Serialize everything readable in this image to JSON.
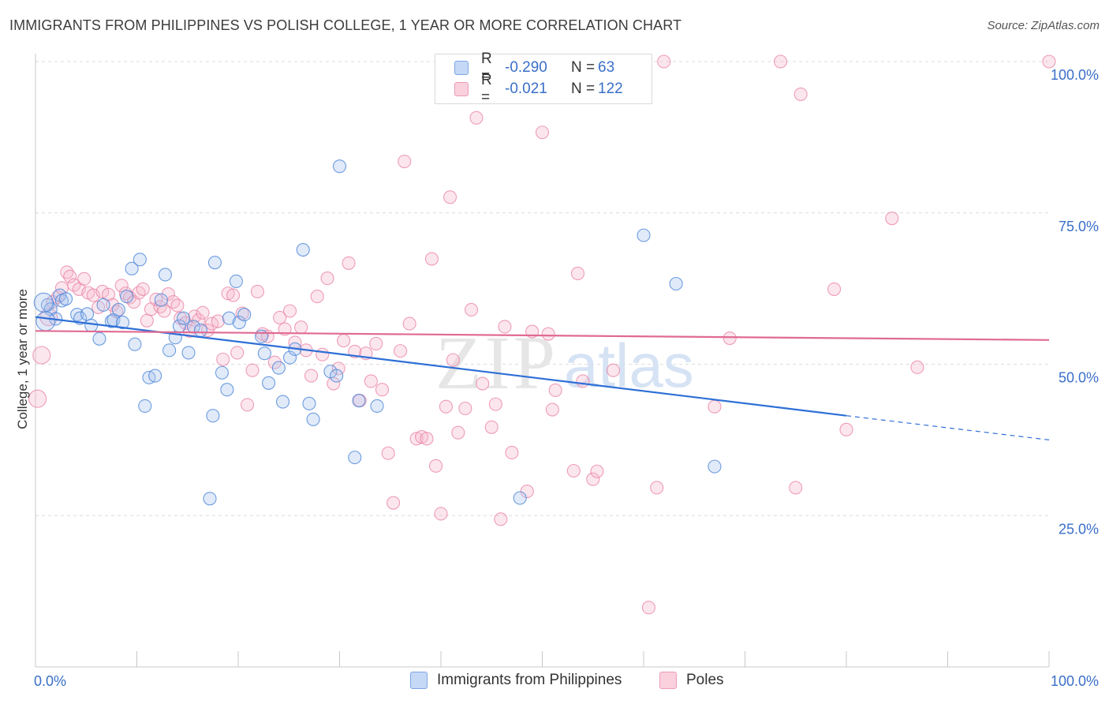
{
  "title": "IMMIGRANTS FROM PHILIPPINES VS POLISH COLLEGE, 1 YEAR OR MORE CORRELATION CHART",
  "source": "Source: ZipAtlas.com",
  "watermark": {
    "zip": "ZIP",
    "atlas": "atlas"
  },
  "legend": {
    "r_label": "R =",
    "n_label": "N =",
    "rows": [
      {
        "swatch_color": "#aec8f0",
        "r": "-0.290",
        "n": "63"
      },
      {
        "swatch_color": "#f5b8cc",
        "r": "-0.021",
        "n": "122"
      }
    ]
  },
  "colors": {
    "blue": "#4a86d8",
    "blue_fill": "rgba(168,196,238,0.35)",
    "blue_line": "#2e6fd6",
    "pink": "#e87fa3",
    "pink_fill": "rgba(245,184,204,0.35)",
    "pink_line": "#e06b92",
    "tick_text": "#3a6fc9"
  },
  "chart_data": {
    "type": "scatter",
    "title": "IMMIGRANTS FROM PHILIPPINES VS POLISH COLLEGE, 1 YEAR OR MORE CORRELATION CHART",
    "xlabel": "",
    "ylabel": "College, 1 year or more",
    "xlim": [
      0,
      100
    ],
    "ylim": [
      0,
      100
    ],
    "x_tick_labels": [
      "0.0%",
      "100.0%"
    ],
    "y_tick_labels": [
      "25.0%",
      "50.0%",
      "75.0%",
      "100.0%"
    ],
    "y_ticks": [
      25,
      50,
      75,
      100
    ],
    "grid": true,
    "legend_position": "bottom",
    "series": [
      {
        "name": "Immigrants from Philippines",
        "trend": {
          "x0": 0,
          "y0": 57.8,
          "x1": 80,
          "y1": 41.5,
          "dash_to_x": 100,
          "dash_to_y": 37.5
        },
        "points": [
          [
            1.2,
            59.8
          ],
          [
            1.5,
            59.1
          ],
          [
            2.0,
            57.5
          ],
          [
            2.4,
            61.4
          ],
          [
            2.6,
            60.5
          ],
          [
            3.0,
            60.8
          ],
          [
            4.1,
            58.2
          ],
          [
            4.4,
            57.6
          ],
          [
            5.1,
            58.3
          ],
          [
            5.5,
            56.4
          ],
          [
            6.3,
            54.2
          ],
          [
            6.7,
            59.8
          ],
          [
            7.5,
            57.1
          ],
          [
            7.7,
            57.3
          ],
          [
            8.2,
            59.0
          ],
          [
            8.6,
            56.9
          ],
          [
            9.0,
            61.2
          ],
          [
            9.5,
            65.8
          ],
          [
            9.8,
            53.3
          ],
          [
            10.3,
            67.3
          ],
          [
            10.8,
            43.1
          ],
          [
            11.2,
            47.8
          ],
          [
            11.8,
            48.1
          ],
          [
            12.4,
            60.6
          ],
          [
            12.8,
            64.8
          ],
          [
            13.2,
            52.3
          ],
          [
            13.8,
            54.4
          ],
          [
            14.2,
            56.3
          ],
          [
            14.6,
            57.6
          ],
          [
            15.1,
            51.9
          ],
          [
            15.6,
            56.2
          ],
          [
            16.3,
            55.6
          ],
          [
            17.2,
            27.8
          ],
          [
            17.5,
            41.5
          ],
          [
            17.7,
            66.8
          ],
          [
            18.4,
            48.6
          ],
          [
            18.9,
            45.8
          ],
          [
            19.1,
            57.6
          ],
          [
            19.8,
            63.7
          ],
          [
            20.1,
            56.9
          ],
          [
            20.6,
            58.2
          ],
          [
            22.3,
            54.6
          ],
          [
            22.6,
            51.8
          ],
          [
            23.0,
            46.9
          ],
          [
            24.0,
            49.4
          ],
          [
            24.4,
            43.8
          ],
          [
            25.1,
            51.1
          ],
          [
            25.6,
            52.5
          ],
          [
            26.4,
            68.9
          ],
          [
            27.0,
            43.5
          ],
          [
            27.4,
            40.9
          ],
          [
            29.1,
            48.8
          ],
          [
            29.7,
            48.1
          ],
          [
            30.0,
            82.7
          ],
          [
            31.5,
            34.6
          ],
          [
            31.9,
            44.0
          ],
          [
            33.7,
            43.1
          ],
          [
            47.8,
            27.9
          ],
          [
            60.0,
            71.3
          ],
          [
            63.2,
            63.3
          ],
          [
            67.0,
            33.1
          ],
          [
            0.8,
            60.2
          ],
          [
            1.0,
            57.1
          ]
        ]
      },
      {
        "name": "Poles",
        "trend": {
          "x0": 0,
          "y0": 55.5,
          "x1": 100,
          "y1": 54.0
        },
        "points": [
          [
            0.2,
            44.3
          ],
          [
            0.6,
            51.5
          ],
          [
            1.3,
            57.8
          ],
          [
            1.7,
            60.3
          ],
          [
            2.2,
            61.1
          ],
          [
            2.6,
            62.6
          ],
          [
            3.1,
            65.2
          ],
          [
            3.4,
            64.5
          ],
          [
            3.8,
            63.1
          ],
          [
            4.3,
            62.4
          ],
          [
            4.8,
            64.1
          ],
          [
            5.2,
            61.8
          ],
          [
            5.7,
            61.4
          ],
          [
            6.2,
            59.4
          ],
          [
            6.6,
            62.0
          ],
          [
            7.2,
            61.5
          ],
          [
            7.6,
            59.8
          ],
          [
            8.0,
            58.7
          ],
          [
            8.5,
            63.0
          ],
          [
            8.9,
            61.7
          ],
          [
            9.3,
            61.0
          ],
          [
            9.7,
            60.3
          ],
          [
            10.2,
            61.8
          ],
          [
            10.6,
            62.4
          ],
          [
            11.0,
            57.2
          ],
          [
            11.4,
            59.1
          ],
          [
            11.9,
            60.7
          ],
          [
            12.3,
            59.5
          ],
          [
            12.7,
            58.8
          ],
          [
            13.1,
            61.6
          ],
          [
            13.6,
            60.3
          ],
          [
            14.0,
            59.7
          ],
          [
            14.3,
            57.6
          ],
          [
            14.8,
            56.8
          ],
          [
            15.2,
            55.5
          ],
          [
            15.7,
            57.9
          ],
          [
            16.1,
            57.3
          ],
          [
            16.5,
            58.5
          ],
          [
            17.0,
            55.6
          ],
          [
            17.4,
            56.7
          ],
          [
            18.0,
            57.1
          ],
          [
            18.5,
            50.8
          ],
          [
            19.0,
            61.7
          ],
          [
            19.5,
            61.4
          ],
          [
            19.9,
            51.9
          ],
          [
            20.4,
            58.4
          ],
          [
            20.9,
            43.3
          ],
          [
            21.4,
            49.0
          ],
          [
            21.9,
            62.0
          ],
          [
            22.4,
            55.0
          ],
          [
            22.9,
            54.6
          ],
          [
            23.6,
            50.3
          ],
          [
            24.1,
            57.7
          ],
          [
            24.6,
            55.8
          ],
          [
            25.1,
            58.8
          ],
          [
            25.6,
            53.6
          ],
          [
            26.2,
            56.1
          ],
          [
            26.7,
            52.3
          ],
          [
            27.2,
            48.1
          ],
          [
            27.8,
            61.2
          ],
          [
            28.3,
            51.6
          ],
          [
            28.8,
            64.2
          ],
          [
            29.4,
            46.8
          ],
          [
            29.9,
            49.3
          ],
          [
            30.4,
            53.9
          ],
          [
            30.9,
            66.7
          ],
          [
            31.5,
            52.1
          ],
          [
            32.0,
            44.0
          ],
          [
            32.6,
            51.8
          ],
          [
            33.1,
            47.2
          ],
          [
            33.6,
            53.4
          ],
          [
            34.2,
            45.8
          ],
          [
            34.8,
            35.3
          ],
          [
            35.3,
            27.1
          ],
          [
            36.0,
            52.2
          ],
          [
            36.4,
            83.5
          ],
          [
            36.9,
            56.7
          ],
          [
            37.6,
            37.7
          ],
          [
            38.1,
            38.0
          ],
          [
            38.6,
            37.7
          ],
          [
            39.1,
            67.4
          ],
          [
            39.5,
            33.2
          ],
          [
            40.0,
            25.3
          ],
          [
            40.5,
            43.0
          ],
          [
            40.9,
            77.6
          ],
          [
            41.2,
            50.7
          ],
          [
            41.7,
            38.7
          ],
          [
            42.4,
            42.7
          ],
          [
            43.0,
            59.0
          ],
          [
            43.5,
            90.7
          ],
          [
            44.1,
            46.8
          ],
          [
            45.0,
            39.6
          ],
          [
            45.4,
            43.4
          ],
          [
            45.9,
            24.4
          ],
          [
            46.3,
            56.2
          ],
          [
            47.0,
            35.4
          ],
          [
            47.5,
            100.0
          ],
          [
            48.5,
            29.0
          ],
          [
            49.0,
            55.4
          ],
          [
            50.0,
            88.3
          ],
          [
            50.6,
            55.0
          ],
          [
            51.3,
            45.7
          ],
          [
            51.0,
            42.5
          ],
          [
            53.1,
            32.4
          ],
          [
            53.5,
            65.0
          ],
          [
            54.0,
            47.2
          ],
          [
            55.0,
            31.0
          ],
          [
            55.4,
            32.3
          ],
          [
            57.0,
            49.0
          ],
          [
            60.5,
            9.8
          ],
          [
            61.3,
            29.6
          ],
          [
            62.0,
            100.0
          ],
          [
            67.0,
            43.0
          ],
          [
            68.5,
            54.3
          ],
          [
            73.5,
            100.0
          ],
          [
            75.0,
            29.6
          ],
          [
            75.5,
            94.6
          ],
          [
            78.8,
            62.4
          ],
          [
            80.0,
            39.2
          ],
          [
            84.5,
            74.1
          ],
          [
            87.0,
            49.5
          ],
          [
            100.0,
            100.0
          ]
        ]
      }
    ]
  },
  "bottom_legend": [
    {
      "label": "Immigrants from Philippines",
      "swatch_color": "#aec8f0"
    },
    {
      "label": "Poles",
      "swatch_color": "#f5b8cc"
    }
  ]
}
